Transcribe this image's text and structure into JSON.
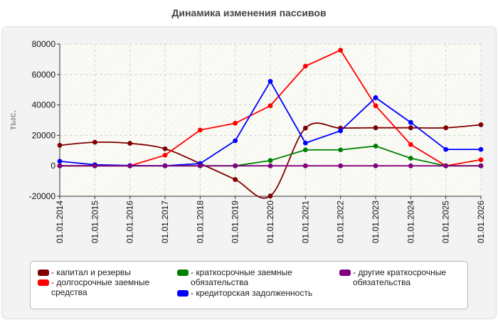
{
  "title": "Динамика изменения пассивов",
  "chart_data": {
    "type": "line",
    "title": "Динамика изменения пассивов",
    "xlabel": "",
    "ylabel": "тыс.",
    "ylim": [
      -20000,
      80000
    ],
    "yticks": [
      -20000,
      0,
      20000,
      40000,
      60000,
      80000
    ],
    "grid": true,
    "legend_position": "bottom",
    "categories": [
      "01.01.2014",
      "01.01.2015",
      "01.01.2016",
      "01.01.2017",
      "01.01.2018",
      "01.01.2019",
      "01.01.2020",
      "01.01.2021",
      "01.01.2022",
      "01.01.2023",
      "01.01.2024",
      "01.01.2025",
      "01.01.2026"
    ],
    "series": [
      {
        "name": "- капитал и резервы",
        "color": "#800000",
        "smooth": true,
        "values": [
          13500,
          15500,
          14800,
          11200,
          1500,
          -9000,
          -19800,
          24800,
          24800,
          25000,
          25000,
          25000,
          27000
        ]
      },
      {
        "name": "- долгосрочные заемные\nсредства",
        "color": "#ff0000",
        "values": [
          0,
          0,
          0,
          7000,
          23500,
          28000,
          39500,
          65500,
          76000,
          39500,
          14000,
          0,
          4000
        ]
      },
      {
        "name": "- краткосрочные заемные\nобязательства",
        "color": "#008000",
        "values": [
          0,
          0,
          0,
          0,
          0,
          0,
          3500,
          10500,
          10500,
          13000,
          5000,
          0,
          0
        ]
      },
      {
        "name": "- кредиторская задолженность",
        "color": "#0000ff",
        "values": [
          3000,
          700,
          200,
          0,
          1500,
          16500,
          55500,
          15000,
          23000,
          44800,
          28500,
          10800,
          10800
        ]
      },
      {
        "name": "- другие краткосрочные\nобязательства",
        "color": "#800080",
        "values": [
          0,
          0,
          0,
          0,
          0,
          0,
          0,
          0,
          0,
          0,
          0,
          0,
          0
        ]
      }
    ]
  }
}
